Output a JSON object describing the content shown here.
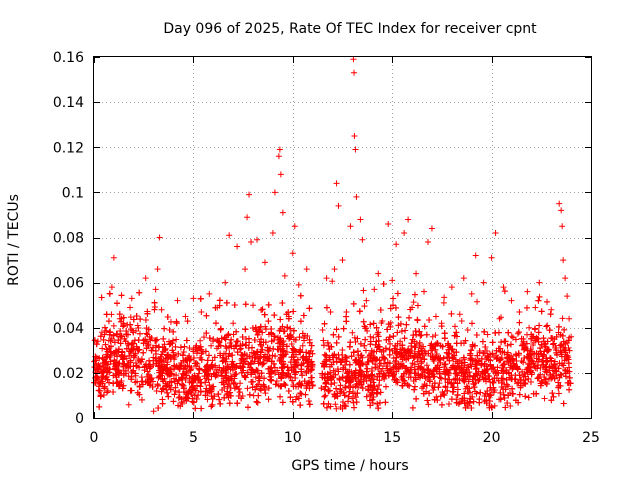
{
  "chart_data": {
    "type": "scatter",
    "title": "Day 096 of 2025, Rate Of TEC Index for receiver cpnt",
    "xlabel": "GPS time / hours",
    "ylabel": "ROTI / TECUs",
    "xlim": [
      0,
      25
    ],
    "ylim": [
      0,
      0.16
    ],
    "x_ticks": [
      0,
      5,
      10,
      15,
      20,
      25
    ],
    "x_tick_labels": [
      "0",
      "5",
      "10",
      "15",
      "20",
      "25"
    ],
    "y_ticks": [
      0,
      0.02,
      0.04,
      0.06,
      0.08,
      0.1,
      0.12,
      0.14,
      0.16
    ],
    "y_tick_labels": [
      "0",
      "0.02",
      "0.04",
      "0.06",
      "0.08",
      "0.1",
      "0.12",
      "0.14",
      "0.16"
    ],
    "grid": true,
    "marker": "+",
    "color": "#ff0000",
    "data_gap_hours": [
      11.0,
      11.4
    ],
    "series": [
      {
        "name": "ROTI",
        "points": [
          [
            0.1,
            0.021
          ],
          [
            0.2,
            0.034
          ],
          [
            0.3,
            0.015
          ],
          [
            0.4,
            0.038
          ],
          [
            0.5,
            0.026
          ],
          [
            0.7,
            0.012
          ],
          [
            0.8,
            0.055
          ],
          [
            0.9,
            0.058
          ],
          [
            1.0,
            0.071
          ],
          [
            1.1,
            0.03
          ],
          [
            1.3,
            0.044
          ],
          [
            1.5,
            0.019
          ],
          [
            1.7,
            0.033
          ],
          [
            1.9,
            0.053
          ],
          [
            2.0,
            0.027
          ],
          [
            2.2,
            0.041
          ],
          [
            2.4,
            0.016
          ],
          [
            2.6,
            0.062
          ],
          [
            2.8,
            0.036
          ],
          [
            3.0,
            0.003
          ],
          [
            3.1,
            0.057
          ],
          [
            3.2,
            0.066
          ],
          [
            3.3,
            0.08
          ],
          [
            3.4,
            0.048
          ],
          [
            3.6,
            0.022
          ],
          [
            3.8,
            0.039
          ],
          [
            4.0,
            0.029
          ],
          [
            4.2,
            0.052
          ],
          [
            4.4,
            0.018
          ],
          [
            4.6,
            0.045
          ],
          [
            4.8,
            0.031
          ],
          [
            5.0,
            0.053
          ],
          [
            5.2,
            0.024
          ],
          [
            5.4,
            0.047
          ],
          [
            5.6,
            0.01
          ],
          [
            5.8,
            0.055
          ],
          [
            6.0,
            0.035
          ],
          [
            6.2,
            0.049
          ],
          [
            6.4,
            0.02
          ],
          [
            6.6,
            0.06
          ],
          [
            6.8,
            0.081
          ],
          [
            7.0,
            0.042
          ],
          [
            7.2,
            0.076
          ],
          [
            7.4,
            0.028
          ],
          [
            7.6,
            0.066
          ],
          [
            7.7,
            0.089
          ],
          [
            7.8,
            0.099
          ],
          [
            7.9,
            0.078
          ],
          [
            8.0,
            0.05
          ],
          [
            8.2,
            0.079
          ],
          [
            8.4,
            0.014
          ],
          [
            8.6,
            0.069
          ],
          [
            8.8,
            0.037
          ],
          [
            9.0,
            0.082
          ],
          [
            9.1,
            0.1
          ],
          [
            9.3,
            0.116
          ],
          [
            9.35,
            0.119
          ],
          [
            9.4,
            0.108
          ],
          [
            9.5,
            0.091
          ],
          [
            9.6,
            0.063
          ],
          [
            9.8,
            0.045
          ],
          [
            10.0,
            0.073
          ],
          [
            10.1,
            0.085
          ],
          [
            10.3,
            0.059
          ],
          [
            10.5,
            0.032
          ],
          [
            10.7,
            0.066
          ],
          [
            10.9,
            0.021
          ],
          [
            11.5,
            0.039
          ],
          [
            11.7,
            0.062
          ],
          [
            11.9,
            0.047
          ],
          [
            12.1,
            0.066
          ],
          [
            12.2,
            0.104
          ],
          [
            12.3,
            0.094
          ],
          [
            12.5,
            0.07
          ],
          [
            12.7,
            0.047
          ],
          [
            12.9,
            0.085
          ],
          [
            13.05,
            0.159
          ],
          [
            13.08,
            0.153
          ],
          [
            13.1,
            0.125
          ],
          [
            13.15,
            0.119
          ],
          [
            13.2,
            0.098
          ],
          [
            13.4,
            0.088
          ],
          [
            13.5,
            0.079
          ],
          [
            13.7,
            0.052
          ],
          [
            13.9,
            0.036
          ],
          [
            14.1,
            0.057
          ],
          [
            14.3,
            0.064
          ],
          [
            14.5,
            0.043
          ],
          [
            14.7,
            0.023
          ],
          [
            14.8,
            0.086
          ],
          [
            15.0,
            0.061
          ],
          [
            15.2,
            0.077
          ],
          [
            15.4,
            0.034
          ],
          [
            15.6,
            0.082
          ],
          [
            15.8,
            0.088
          ],
          [
            16.0,
            0.049
          ],
          [
            16.2,
            0.064
          ],
          [
            16.4,
            0.027
          ],
          [
            16.6,
            0.056
          ],
          [
            16.8,
            0.078
          ],
          [
            17.0,
            0.084
          ],
          [
            17.2,
            0.045
          ],
          [
            17.4,
            0.018
          ],
          [
            17.6,
            0.051
          ],
          [
            17.8,
            0.033
          ],
          [
            18.0,
            0.058
          ],
          [
            18.2,
            0.025
          ],
          [
            18.4,
            0.046
          ],
          [
            18.6,
            0.062
          ],
          [
            18.8,
            0.039
          ],
          [
            19.0,
            0.055
          ],
          [
            19.2,
            0.072
          ],
          [
            19.4,
            0.029
          ],
          [
            19.6,
            0.06
          ],
          [
            19.8,
            0.037
          ],
          [
            20.0,
            0.071
          ],
          [
            20.2,
            0.082
          ],
          [
            20.4,
            0.044
          ],
          [
            20.6,
            0.058
          ],
          [
            20.8,
            0.032
          ],
          [
            21.0,
            0.052
          ],
          [
            21.2,
            0.019
          ],
          [
            21.4,
            0.047
          ],
          [
            21.6,
            0.035
          ],
          [
            21.8,
            0.056
          ],
          [
            22.0,
            0.027
          ],
          [
            22.2,
            0.049
          ],
          [
            22.4,
            0.06
          ],
          [
            22.6,
            0.023
          ],
          [
            22.8,
            0.041
          ],
          [
            23.0,
            0.048
          ],
          [
            23.2,
            0.031
          ],
          [
            23.4,
            0.095
          ],
          [
            23.5,
            0.092
          ],
          [
            23.55,
            0.085
          ],
          [
            23.6,
            0.07
          ],
          [
            23.7,
            0.062
          ],
          [
            23.8,
            0.054
          ],
          [
            23.9,
            0.044
          ],
          [
            24.0,
            0.036
          ]
        ]
      }
    ]
  }
}
